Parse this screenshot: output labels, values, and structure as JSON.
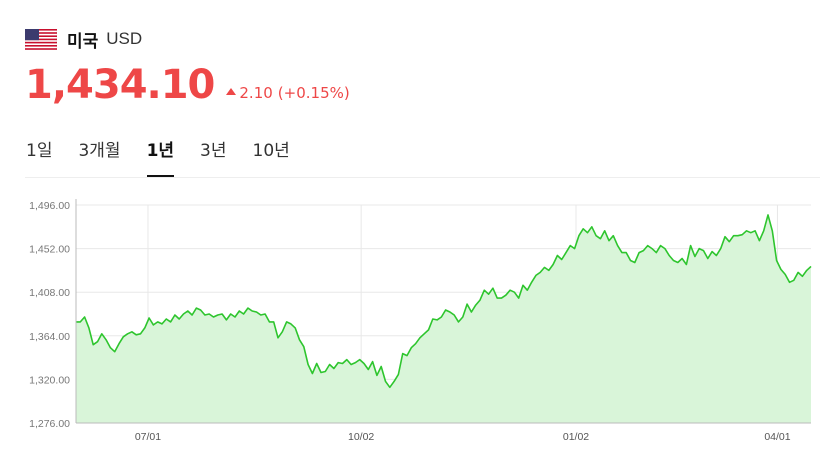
{
  "header": {
    "flag_icon": "us-flag-icon",
    "country": "미국",
    "currency": "USD"
  },
  "quote": {
    "price": "1,434.10",
    "change": "2.10",
    "change_pct": "(+0.15%)",
    "direction_icon": "triangle-up-icon",
    "color": "#ee4747"
  },
  "tabs": [
    {
      "label": "1일",
      "active": false
    },
    {
      "label": "3개월",
      "active": false
    },
    {
      "label": "1년",
      "active": true
    },
    {
      "label": "3년",
      "active": false
    },
    {
      "label": "10년",
      "active": false
    }
  ],
  "chart_data": {
    "type": "area",
    "title": "",
    "xlabel": "",
    "ylabel": "",
    "ylim": [
      1276,
      1496
    ],
    "y_ticks": [
      "1,496.00",
      "1,452.00",
      "1,408.00",
      "1,364.00",
      "1,320.00",
      "1,276.00"
    ],
    "y_tick_values": [
      1496,
      1452,
      1408,
      1364,
      1320,
      1276
    ],
    "x_ticks": [
      "07/01",
      "10/02",
      "01/02",
      "04/01"
    ],
    "x_tick_positions": [
      0.177,
      0.432,
      0.689,
      0.93
    ],
    "grid": true,
    "line_color": "#2ec52e",
    "fill_color": "#d9f5d9",
    "values": [
      1378,
      1378,
      1383,
      1372,
      1355,
      1358,
      1366,
      1360,
      1352,
      1348,
      1356,
      1363,
      1366,
      1368,
      1365,
      1366,
      1372,
      1382,
      1375,
      1378,
      1376,
      1381,
      1378,
      1385,
      1381,
      1386,
      1389,
      1385,
      1392,
      1390,
      1385,
      1386,
      1383,
      1385,
      1386,
      1380,
      1386,
      1383,
      1389,
      1386,
      1392,
      1389,
      1388,
      1385,
      1386,
      1378,
      1378,
      1362,
      1368,
      1378,
      1376,
      1372,
      1360,
      1353,
      1335,
      1326,
      1336,
      1327,
      1328,
      1335,
      1331,
      1337,
      1336,
      1340,
      1335,
      1337,
      1340,
      1336,
      1330,
      1338,
      1324,
      1333,
      1318,
      1312,
      1318,
      1325,
      1346,
      1344,
      1352,
      1356,
      1362,
      1366,
      1370,
      1381,
      1380,
      1383,
      1390,
      1388,
      1385,
      1378,
      1383,
      1396,
      1388,
      1395,
      1400,
      1410,
      1406,
      1412,
      1402,
      1402,
      1405,
      1410,
      1408,
      1402,
      1415,
      1410,
      1418,
      1425,
      1428,
      1433,
      1430,
      1436,
      1445,
      1441,
      1448,
      1455,
      1452,
      1465,
      1472,
      1468,
      1474,
      1465,
      1462,
      1470,
      1460,
      1465,
      1455,
      1448,
      1448,
      1440,
      1438,
      1448,
      1450,
      1455,
      1452,
      1448,
      1455,
      1452,
      1445,
      1440,
      1438,
      1442,
      1436,
      1455,
      1444,
      1452,
      1450,
      1442,
      1449,
      1445,
      1452,
      1464,
      1459,
      1465,
      1465,
      1466,
      1470,
      1468,
      1470,
      1460,
      1470,
      1486,
      1470,
      1440,
      1431,
      1426,
      1418,
      1420,
      1428,
      1424,
      1430,
      1434
    ]
  }
}
